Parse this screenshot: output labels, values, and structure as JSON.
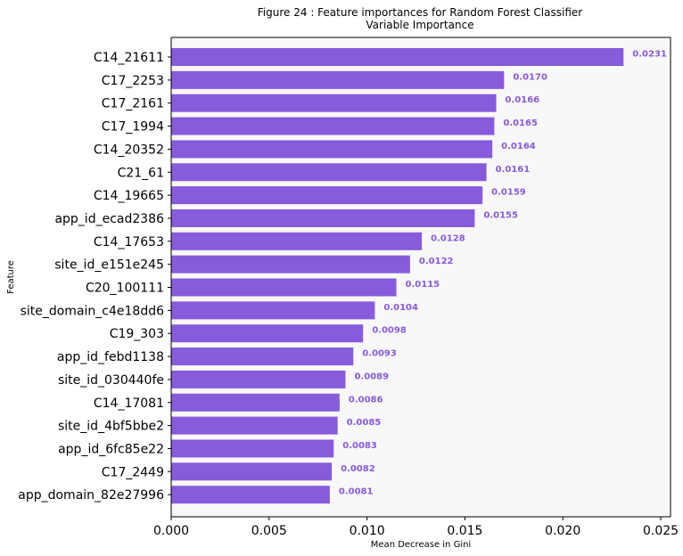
{
  "chart_data": {
    "type": "bar",
    "orientation": "horizontal",
    "title": "Figure 24 : Feature importances for Random Forest Classifier",
    "subtitle": "Variable Importance",
    "xlabel": "Mean Decrease in Gini",
    "ylabel": "Feature",
    "xlim": [
      0,
      0.0255
    ],
    "xticks": [
      0,
      0.005,
      0.01,
      0.015,
      0.02,
      0.025
    ],
    "xtick_labels": [
      "0.000",
      "0.005",
      "0.010",
      "0.015",
      "0.020",
      "0.025"
    ],
    "grid": false,
    "bar_color": "#875bdb",
    "label_color": "#875bdb",
    "plot_background": "#f8f8f8",
    "categories": [
      "C14_21611",
      "C17_2253",
      "C17_2161",
      "C17_1994",
      "C14_20352",
      "C21_61",
      "C14_19665",
      "app_id_ecad2386",
      "C14_17653",
      "site_id_e151e245",
      "C20_100111",
      "site_domain_c4e18dd6",
      "C19_303",
      "app_id_febd1138",
      "site_id_030440fe",
      "C14_17081",
      "site_id_4bf5bbe2",
      "app_id_6fc85e22",
      "C17_2449",
      "app_domain_82e27996"
    ],
    "values": [
      0.0231,
      0.017,
      0.0166,
      0.0165,
      0.0164,
      0.0161,
      0.0159,
      0.0155,
      0.0128,
      0.0122,
      0.0115,
      0.0104,
      0.0098,
      0.0093,
      0.0089,
      0.0086,
      0.0085,
      0.0083,
      0.0082,
      0.0081
    ],
    "value_labels": [
      "0.0231",
      "0.0170",
      "0.0166",
      "0.0165",
      "0.0164",
      "0.0161",
      "0.0159",
      "0.0155",
      "0.0128",
      "0.0122",
      "0.0115",
      "0.0104",
      "0.0098",
      "0.0093",
      "0.0089",
      "0.0086",
      "0.0085",
      "0.0083",
      "0.0082",
      "0.0081"
    ]
  }
}
